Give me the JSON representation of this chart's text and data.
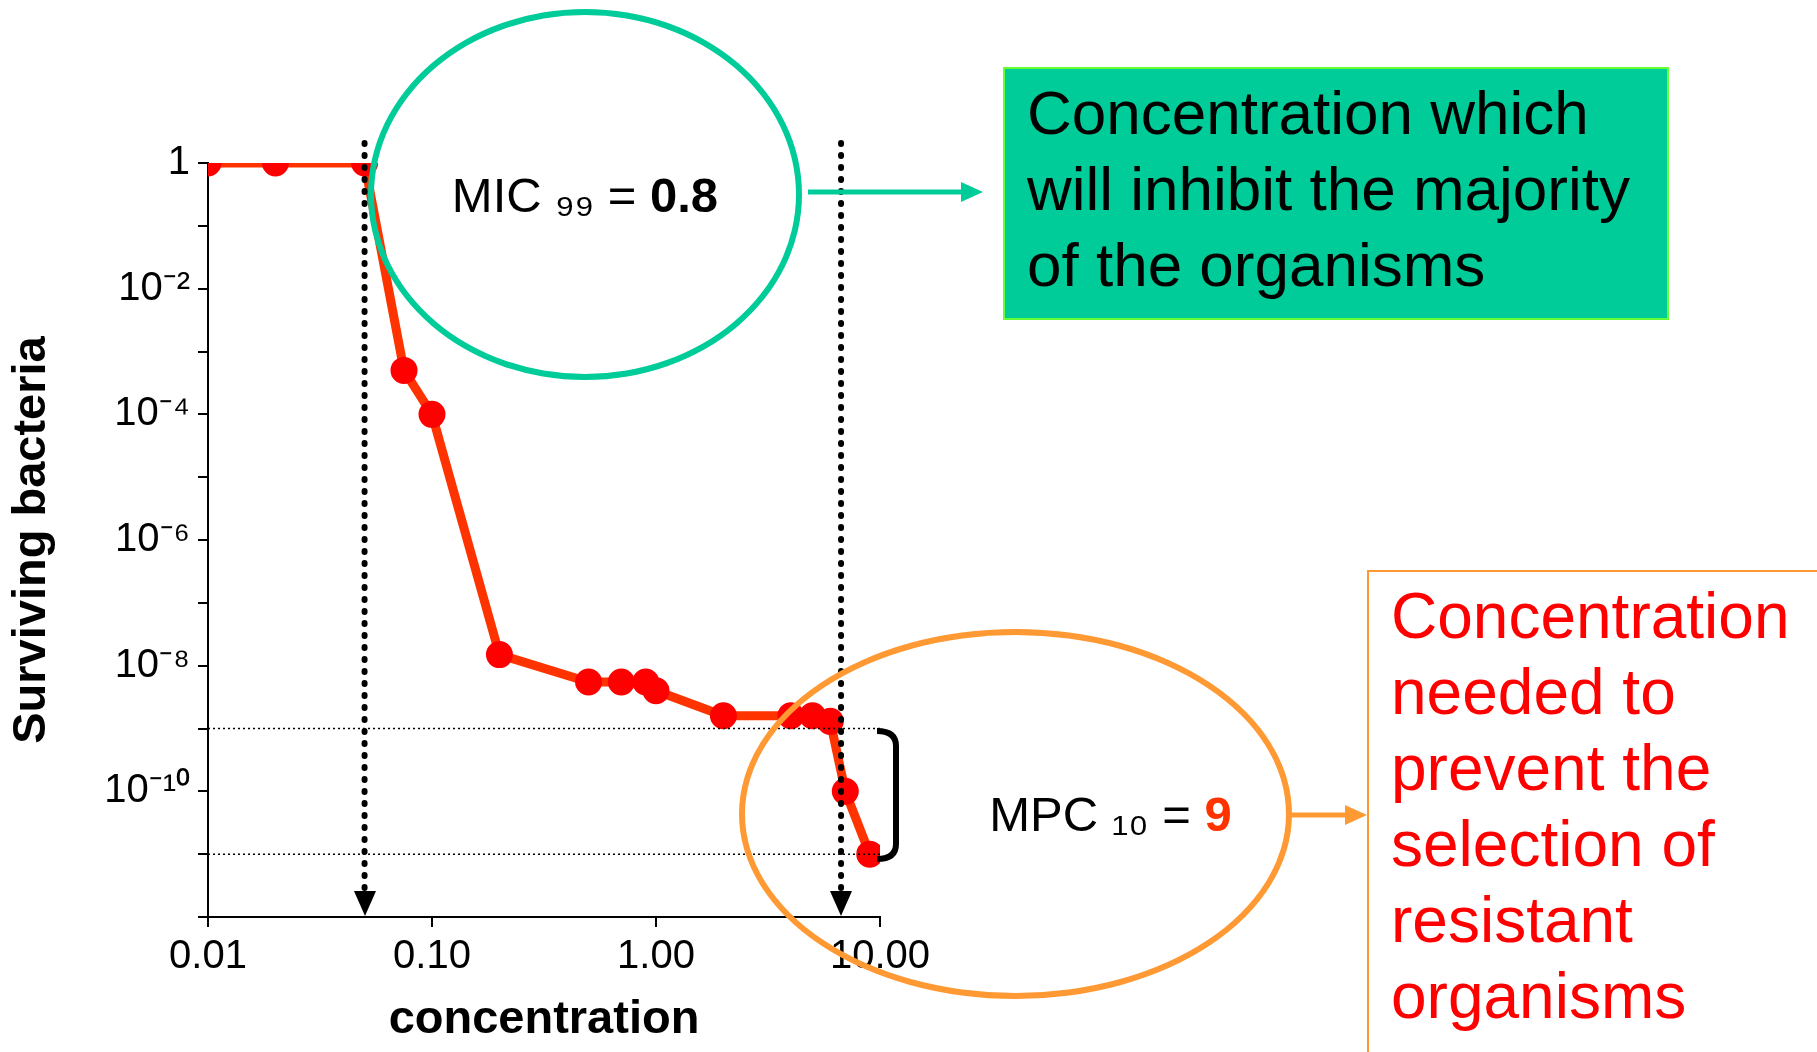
{
  "chart_data": {
    "type": "line",
    "xlabel": "concentration",
    "ylabel": "Surviving bacteria",
    "x": [
      0.01,
      0.02,
      0.05,
      0.075,
      0.1,
      0.2,
      0.5,
      0.7,
      0.9,
      1.0,
      2.0,
      4.0,
      5.0,
      6.0,
      7.0,
      9.0
    ],
    "series": [
      {
        "color": "#ff3300",
        "values": [
          1,
          1,
          1,
          0.0005,
          0.0001,
          1.5e-08,
          5.5e-09,
          5.5e-09,
          5.5e-09,
          4e-09,
          1.6e-09,
          1.6e-09,
          1.6e-09,
          1.3e-09,
          1e-10,
          1e-11
        ]
      }
    ],
    "log": "xy",
    "grid": false,
    "legend": false,
    "marker": "circle",
    "line_style": "solid",
    "xlim": [
      0.01,
      10
    ],
    "ylim": [
      1e-12,
      1
    ],
    "xticks": [
      {
        "value": 0.01,
        "label": "0.01"
      },
      {
        "value": 0.1,
        "label": "0.10"
      },
      {
        "value": 1,
        "label": "1.00"
      },
      {
        "value": 10,
        "label": "10.00"
      }
    ],
    "yticks": [
      1,
      {
        "value": 0.1,
        "label": null
      },
      {
        "value": 0.01,
        "label": "10⁻²"
      },
      {
        "value": 0.001,
        "label": null
      },
      {
        "value": 0.0001,
        "label": "10⁻⁴"
      },
      {
        "value": 1e-05,
        "label": null
      },
      {
        "value": 1e-06,
        "label": "10⁻⁶"
      },
      {
        "value": 1e-07,
        "label": null
      },
      {
        "value": 1e-08,
        "label": "10⁻⁸"
      },
      {
        "value": 1e-09,
        "label": null
      },
      {
        "value": 1e-10,
        "label": "10⁻¹⁰"
      },
      {
        "value": 1e-11,
        "label": null
      },
      {
        "value": 1e-12,
        "label": null
      }
    ],
    "ref_lines": [
      {
        "axis": "x",
        "value": 0.05,
        "color": "#000000",
        "line_style": "dotted"
      },
      {
        "axis": "x",
        "value": 6.7,
        "color": "#000000",
        "line_style": "dotted"
      },
      {
        "axis": "y",
        "value": 1e-09,
        "color": "#000000",
        "line_style": "dotted"
      },
      {
        "axis": "y",
        "value": 1e-11,
        "color": "#000000",
        "line_style": "dotted"
      }
    ],
    "annotations": [
      "MIC ₉₉ = 0.8",
      "Concentration which will inhibit the majority of the organisms",
      "MPC ₁₀ = 9",
      "Concentration needed to prevent the selection of resistant organisms"
    ]
  }
}
